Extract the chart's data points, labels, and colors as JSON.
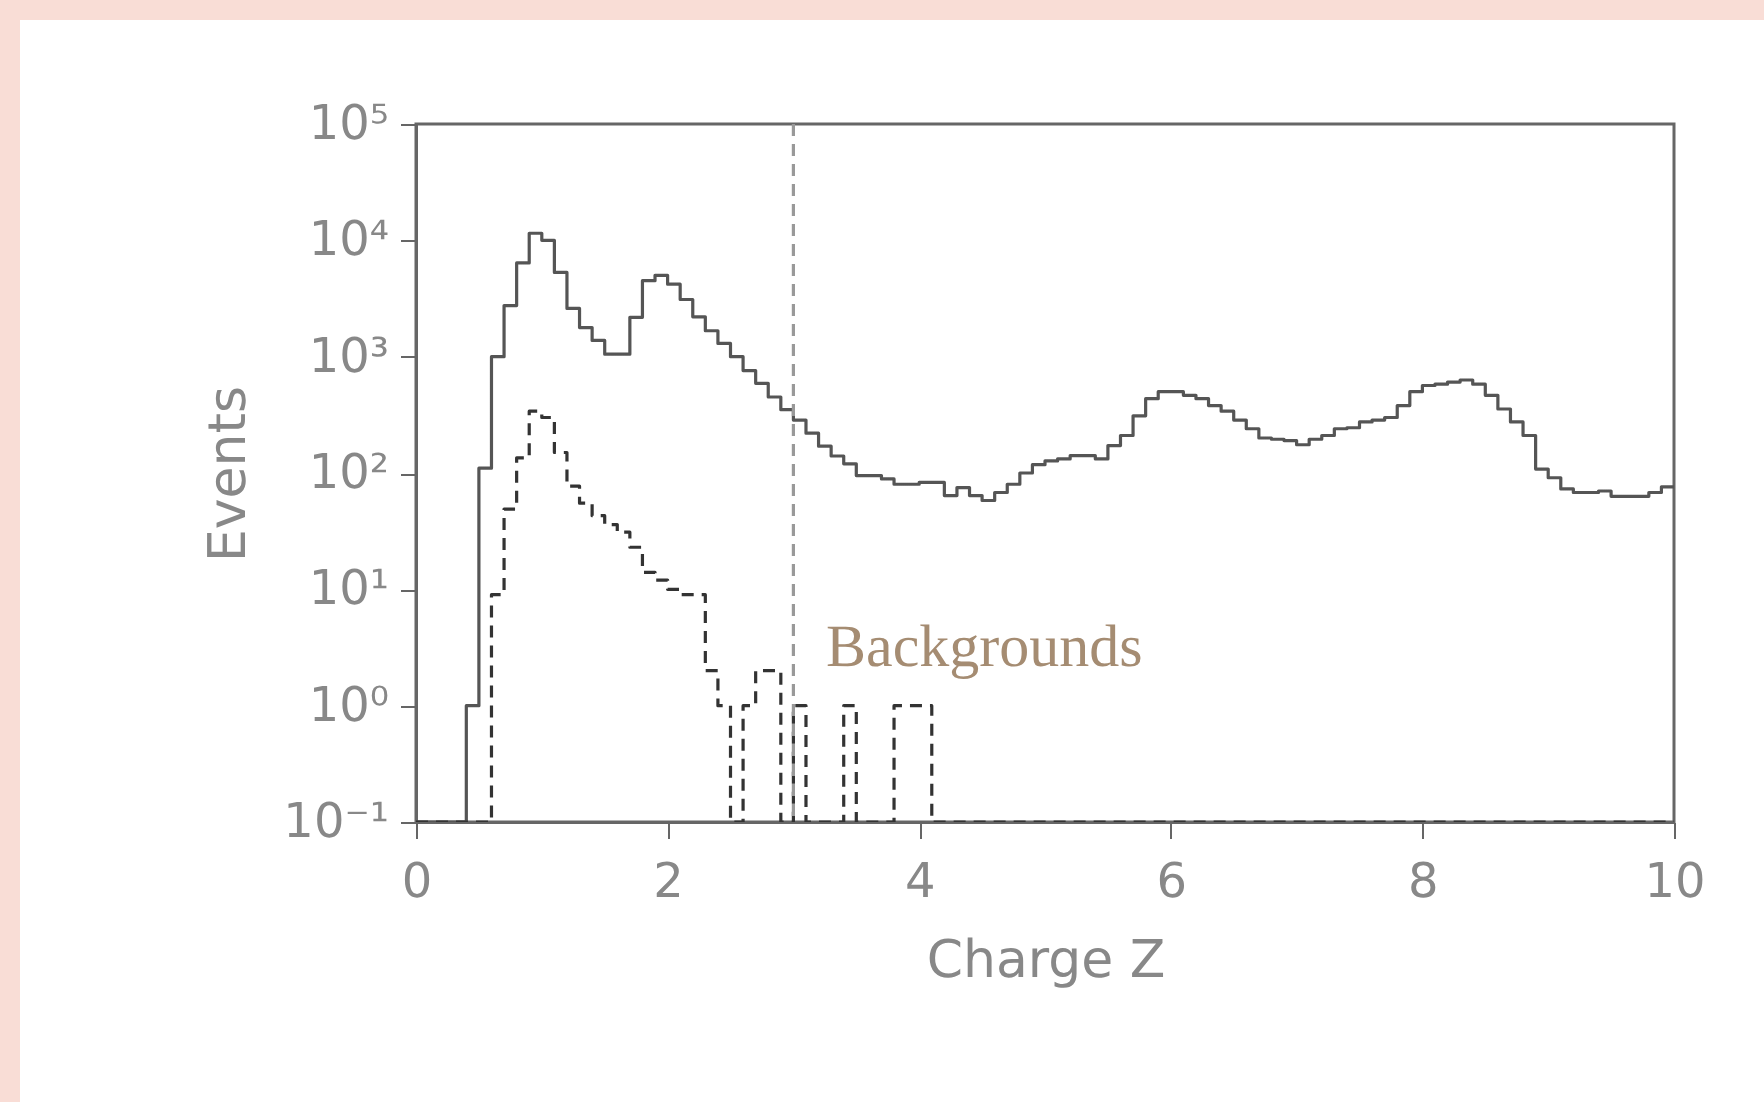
{
  "chart_data": {
    "type": "histogram",
    "xlabel": "Charge Z",
    "ylabel": "Events",
    "bins": [
      0,
      0.1,
      0.2,
      0.3,
      0.4,
      0.5,
      0.6,
      0.7,
      0.8,
      0.9,
      1,
      1.1,
      1.2,
      1.3,
      1.4,
      1.5,
      1.6,
      1.7,
      1.8,
      1.9,
      2,
      2.1,
      2.2,
      2.3,
      2.4,
      2.5,
      2.6,
      2.7,
      2.8,
      2.9,
      3,
      3.1,
      3.2,
      3.3,
      3.4,
      3.5,
      3.6,
      3.7,
      3.8,
      3.9,
      4,
      4.1,
      4.2,
      4.3,
      4.4,
      4.5,
      4.6,
      4.7,
      4.8,
      4.9,
      5,
      5.1,
      5.2,
      5.3,
      5.4,
      5.5,
      5.6,
      5.7,
      5.8,
      5.9,
      6,
      6.1,
      6.2,
      6.3,
      6.4,
      6.5,
      6.6,
      6.7,
      6.8,
      6.9,
      7,
      7.1,
      7.2,
      7.3,
      7.4,
      7.5,
      7.6,
      7.7,
      7.8,
      7.9,
      8,
      8.1,
      8.2,
      8.3,
      8.4,
      8.5,
      8.6,
      8.7,
      8.8,
      8.9,
      9,
      9.1,
      9.2,
      9.3,
      9.4,
      9.5,
      9.6,
      9.7,
      9.8,
      9.9,
      10
    ],
    "series": [
      {
        "color": "#555555",
        "line_style": "solid",
        "values": [
          0.1,
          0.1,
          0.1,
          0.1,
          1,
          110,
          1000,
          2750,
          6400,
          11500,
          10000,
          5300,
          2600,
          1780,
          1380,
          1050,
          1050,
          2180,
          4500,
          5000,
          4200,
          3100,
          2200,
          1670,
          1300,
          1000,
          760,
          590,
          450,
          350,
          285,
          220,
          170,
          140,
          120,
          95,
          95,
          89,
          80,
          80,
          83,
          83,
          64,
          75,
          64,
          58,
          68,
          80,
          100,
          118,
          127,
          132,
          141,
          141,
          132,
          172,
          210,
          310,
          435,
          500,
          500,
          465,
          435,
          380,
          340,
          285,
          240,
          200,
          195,
          190,
          175,
          195,
          210,
          240,
          245,
          275,
          285,
          300,
          380,
          500,
          565,
          580,
          605,
          630,
          580,
          465,
          355,
          275,
          210,
          108,
          91,
          73,
          68,
          68,
          70,
          63,
          63,
          63,
          68,
          76
        ]
      },
      {
        "color": "#333333",
        "line_style": "dashed",
        "values": [
          0.1,
          0.1,
          0.1,
          0.1,
          0.1,
          0.1,
          9,
          49,
          135,
          340,
          300,
          150,
          77,
          55,
          43,
          36,
          31,
          23,
          14,
          12,
          10,
          9,
          9,
          2,
          1,
          0.1,
          1,
          2,
          2,
          0.1,
          1,
          0.1,
          0.1,
          0.1,
          1,
          0.1,
          0.1,
          0.1,
          1,
          1,
          1,
          0.1,
          0.1,
          0.1,
          0.1,
          0.1,
          0.1,
          0.1,
          0.1,
          0.1,
          0.1,
          0.1,
          0.1,
          0.1,
          0.1,
          0.1,
          0.1,
          0.1,
          0.1,
          0.1,
          0.1,
          0.1,
          0.1,
          0.1,
          0.1,
          0.1,
          0.1,
          0.1,
          0.1,
          0.1,
          0.1,
          0.1,
          0.1,
          0.1,
          0.1,
          0.1,
          0.1,
          0.1,
          0.1,
          0.1,
          0.1,
          0.1,
          0.1,
          0.1,
          0.1,
          0.1,
          0.1,
          0.1,
          0.1,
          0.1,
          0.1,
          0.1,
          0.1,
          0.1,
          0.1,
          0.1,
          0.1,
          0.1,
          0.1,
          0.1
        ]
      }
    ],
    "log": "y",
    "xlim": [
      0,
      10
    ],
    "xticks": [
      0,
      2,
      4,
      6,
      8,
      10
    ],
    "ylim": [
      0.1,
      100000
    ],
    "yticks": [
      {
        "value": 0.1,
        "label": "10⁻¹"
      },
      {
        "value": 1,
        "label": "10⁰"
      },
      {
        "value": 10,
        "label": "10¹"
      },
      {
        "value": 100,
        "label": "10²"
      },
      {
        "value": 1000,
        "label": "10³"
      },
      {
        "value": 10000,
        "label": "10⁴"
      },
      {
        "value": 100000,
        "label": "10⁵"
      }
    ],
    "ref_lines": [
      {
        "axis": "x",
        "value": 3,
        "color": "#999999",
        "line_style": "dashed"
      }
    ],
    "annotations": [
      "Backgrounds"
    ]
  }
}
